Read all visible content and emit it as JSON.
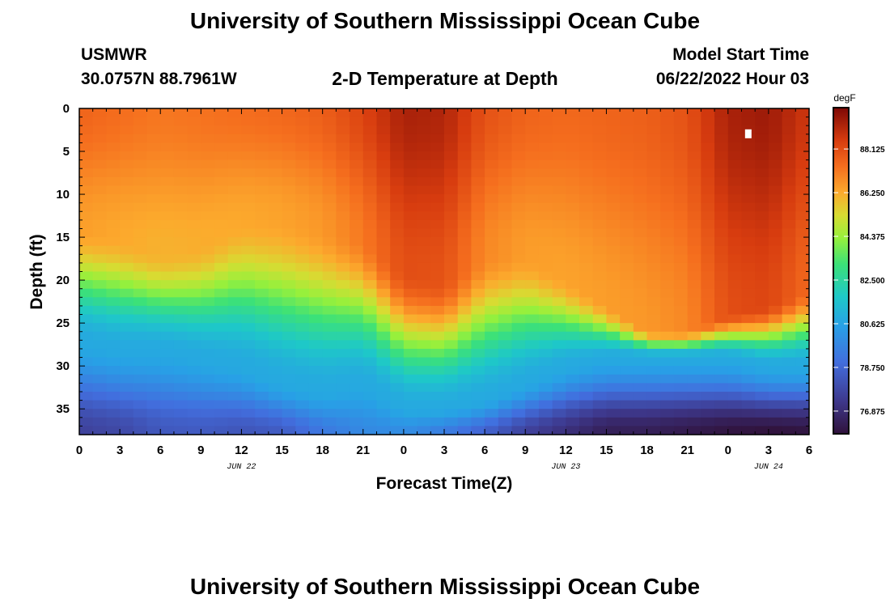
{
  "page": {
    "title_top": "University of Southern Mississippi Ocean Cube",
    "title_bottom": "University of Southern Mississippi Ocean Cube",
    "station": "USMWR",
    "coords": "30.0757N  88.7961W",
    "subtitle": "2-D Temperature at Depth",
    "model_start_label": "Model Start Time",
    "model_start_value": "06/22/2022 Hour 03"
  },
  "chart_data": {
    "type": "heatmap",
    "title": "2-D Temperature at Depth",
    "xlabel": "Forecast Time(Z)",
    "ylabel": "Depth (ft)",
    "colorbar_label": "degF",
    "x_ticks": [
      "0",
      "3",
      "6",
      "9",
      "12",
      "15",
      "18",
      "21",
      "0",
      "3",
      "6",
      "9",
      "12",
      "15",
      "18",
      "21",
      "0",
      "3",
      "6"
    ],
    "x_hours": [
      0,
      3,
      6,
      9,
      12,
      15,
      18,
      21,
      24,
      27,
      30,
      33,
      36,
      39,
      42,
      45,
      48,
      51,
      54
    ],
    "date_labels": [
      {
        "label": "JUN 22",
        "hour": 12
      },
      {
        "label": "JUN 23",
        "hour": 36
      },
      {
        "label": "JUN 24",
        "hour": 51
      }
    ],
    "y_ticks": [
      "0",
      "5",
      "10",
      "15",
      "20",
      "25",
      "30",
      "35"
    ],
    "y_values": [
      0,
      5,
      10,
      15,
      20,
      25,
      30,
      35
    ],
    "ylim": [
      0,
      38
    ],
    "xlim": [
      0,
      54
    ],
    "colorbar_ticks": [
      "88.125",
      "86.250",
      "84.375",
      "82.500",
      "80.625",
      "78.750",
      "76.875"
    ],
    "colorbar_values": [
      88.125,
      86.25,
      84.375,
      82.5,
      80.625,
      78.75,
      76.875
    ],
    "color_range": [
      75.9,
      89.9
    ],
    "profile_hours": [
      0,
      3,
      6,
      9,
      12,
      15,
      18,
      21,
      24,
      27,
      30,
      33,
      36,
      39,
      42,
      45,
      48,
      51,
      54
    ],
    "mixed_layer_depth_ft": [
      14,
      15,
      17,
      16,
      13,
      13,
      14,
      15,
      19,
      20,
      17,
      17,
      20,
      23,
      26,
      26,
      24,
      23,
      21
    ],
    "thermocline_depth_ft": [
      27,
      28,
      28,
      29,
      30,
      32,
      33,
      32,
      35,
      35,
      34,
      32,
      30,
      29,
      29,
      29,
      29,
      30,
      30
    ],
    "surface_temp_degF": [
      87.6,
      87.4,
      87.2,
      87.3,
      87.4,
      87.5,
      87.7,
      88.3,
      89.2,
      89.1,
      88.0,
      87.6,
      87.5,
      87.6,
      87.7,
      88.0,
      89.2,
      89.4,
      88.6
    ],
    "bottom_temp_degF": [
      77.6,
      77.8,
      78.3,
      78.4,
      78.2,
      78.4,
      79.3,
      79.8,
      79.9,
      79.4,
      78.6,
      77.6,
      77.0,
      76.4,
      76.4,
      76.2,
      76.0,
      75.9,
      76.0
    ],
    "marker": {
      "hour": 49.5,
      "depth_ft": 3
    }
  }
}
